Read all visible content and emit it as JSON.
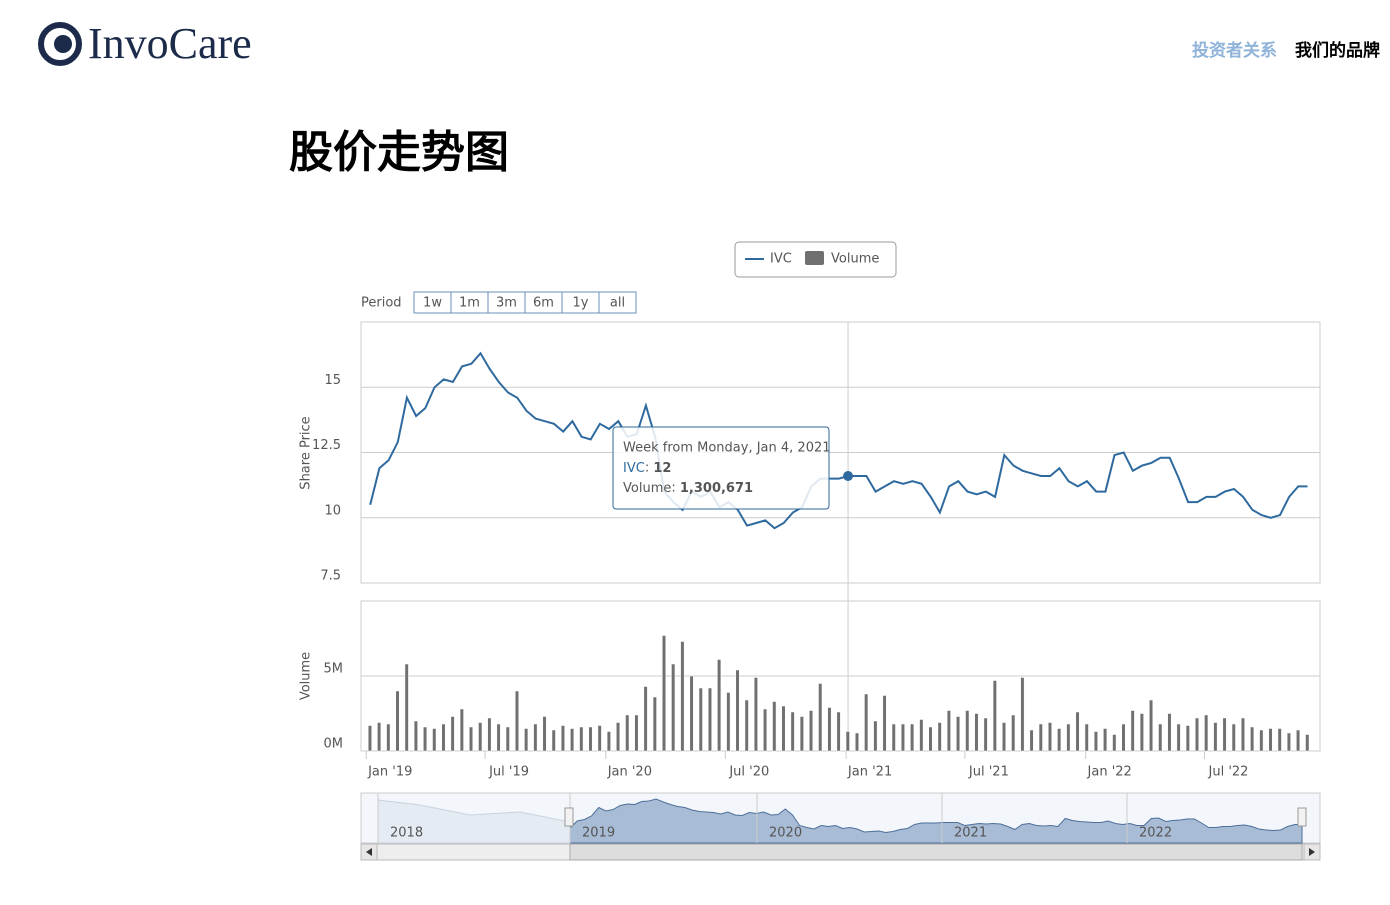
{
  "header": {
    "logo": "InvoCare",
    "nav": [
      "投资者关系",
      "我们的品牌"
    ]
  },
  "page_title": "股价走势图",
  "period": {
    "label": "Period",
    "buttons": [
      "1w",
      "1m",
      "3m",
      "6m",
      "1y",
      "all"
    ]
  },
  "chart_data": {
    "type": "line",
    "legend": [
      "IVC",
      "Volume"
    ],
    "y_title": "Share Price",
    "y2_title": "Volume",
    "x": [
      "2019-01-07",
      "2019-01-21",
      "2019-02-04",
      "2019-02-18",
      "2019-03-04",
      "2019-03-18",
      "2019-04-01",
      "2019-04-15",
      "2019-04-29",
      "2019-05-13",
      "2019-05-27",
      "2019-06-10",
      "2019-06-24",
      "2019-07-08",
      "2019-07-22",
      "2019-08-05",
      "2019-08-19",
      "2019-09-02",
      "2019-09-16",
      "2019-09-30",
      "2019-10-14",
      "2019-10-28",
      "2019-11-11",
      "2019-11-25",
      "2019-12-09",
      "2019-12-23",
      "2020-01-06",
      "2020-01-20",
      "2020-02-03",
      "2020-02-17",
      "2020-03-02",
      "2020-03-16",
      "2020-03-30",
      "2020-04-13",
      "2020-04-27",
      "2020-05-11",
      "2020-05-25",
      "2020-06-08",
      "2020-06-22",
      "2020-07-06",
      "2020-07-20",
      "2020-08-03",
      "2020-08-17",
      "2020-08-31",
      "2020-09-14",
      "2020-09-28",
      "2020-10-12",
      "2020-10-26",
      "2020-11-09",
      "2020-11-23",
      "2020-12-07",
      "2020-12-21",
      "2021-01-04",
      "2021-01-18",
      "2021-02-01",
      "2021-02-15",
      "2021-03-01",
      "2021-03-15",
      "2021-03-29",
      "2021-04-12",
      "2021-04-26",
      "2021-05-10",
      "2021-05-24",
      "2021-06-07",
      "2021-06-21",
      "2021-07-05",
      "2021-07-19",
      "2021-08-02",
      "2021-08-16",
      "2021-08-30",
      "2021-09-13",
      "2021-09-27",
      "2021-10-11",
      "2021-10-25",
      "2021-11-08",
      "2021-11-22",
      "2021-12-06",
      "2021-12-20",
      "2022-01-03",
      "2022-01-17",
      "2022-01-31",
      "2022-02-14",
      "2022-02-28",
      "2022-03-14",
      "2022-03-28",
      "2022-04-11",
      "2022-04-25",
      "2022-05-09",
      "2022-05-23",
      "2022-06-06",
      "2022-06-20",
      "2022-07-04",
      "2022-07-18",
      "2022-08-01",
      "2022-08-15",
      "2022-08-29",
      "2022-09-12",
      "2022-09-26",
      "2022-10-10",
      "2022-10-24",
      "2022-11-07",
      "2022-11-21",
      "2022-12-05"
    ],
    "series": [
      {
        "name": "IVC",
        "color": "#2f6a9f",
        "values": [
          10.5,
          11.9,
          12.2,
          12.9,
          14.6,
          13.9,
          14.2,
          15.0,
          15.3,
          15.2,
          15.8,
          15.9,
          16.3,
          15.7,
          15.2,
          14.8,
          14.6,
          14.1,
          13.8,
          13.7,
          13.6,
          13.3,
          13.7,
          13.1,
          13.0,
          13.6,
          13.4,
          13.7,
          13.1,
          13.2,
          14.3,
          13.1,
          11.0,
          10.6,
          10.3,
          11.0,
          10.8,
          11.0,
          10.4,
          10.6,
          10.3,
          9.7,
          9.8,
          9.9,
          9.6,
          9.8,
          10.2,
          10.4,
          11.2,
          11.5,
          11.5,
          11.5,
          11.6,
          11.6,
          11.6,
          11.0,
          11.2,
          11.4,
          11.3,
          11.4,
          11.3,
          10.8,
          10.2,
          11.2,
          11.4,
          11.0,
          10.9,
          11.0,
          10.8,
          12.4,
          12.0,
          11.8,
          11.7,
          11.6,
          11.6,
          11.9,
          11.4,
          11.2,
          11.4,
          11.0,
          11.0,
          12.4,
          12.5,
          11.8,
          12.0,
          12.1,
          12.3,
          12.3,
          11.5,
          10.6,
          10.6,
          10.8,
          10.8,
          11.0,
          11.1,
          10.8,
          10.3,
          10.1,
          10.0,
          10.1,
          10.8,
          11.2,
          11.2
        ]
      },
      {
        "name": "Volume",
        "color": "#707070",
        "axis": "y2",
        "values": [
          1700000,
          1900000,
          1800000,
          4000000,
          5800000,
          2000000,
          1600000,
          1500000,
          1800000,
          2300000,
          2800000,
          1600000,
          1900000,
          2200000,
          1800000,
          1600000,
          4000000,
          1500000,
          1800000,
          2300000,
          1400000,
          1700000,
          1500000,
          1600000,
          1600000,
          1700000,
          1300000,
          1900000,
          2400000,
          2400000,
          4300000,
          3600000,
          7700000,
          5800000,
          7300000,
          5000000,
          4200000,
          4200000,
          6100000,
          3900000,
          5400000,
          3400000,
          4900000,
          2800000,
          3300000,
          3000000,
          2600000,
          2300000,
          2700000,
          4500000,
          2900000,
          2600000,
          1300671,
          1200000,
          3800000,
          2000000,
          3700000,
          1800000,
          1800000,
          1800000,
          2100000,
          1600000,
          1900000,
          2700000,
          2300000,
          2700000,
          2500000,
          2200000,
          4700000,
          1900000,
          2400000,
          4900000,
          1400000,
          1800000,
          1900000,
          1500000,
          1800000,
          2600000,
          1800000,
          1300000,
          1500000,
          1100000,
          1800000,
          2700000,
          2500000,
          3400000,
          1800000,
          2500000,
          1800000,
          1700000,
          2200000,
          2400000,
          1900000,
          2200000,
          1800000,
          2200000,
          1600000,
          1400000,
          1500000,
          1500000,
          1200000,
          1400000,
          1100000
        ]
      }
    ],
    "xlim": [
      "2018-12-24",
      "2022-12-24"
    ],
    "xticks": [
      {
        "value": "2019-01-01",
        "label": "Jan '19"
      },
      {
        "value": "2019-07-01",
        "label": "Jul '19"
      },
      {
        "value": "2020-01-01",
        "label": "Jan '20"
      },
      {
        "value": "2020-07-01",
        "label": "Jul '20"
      },
      {
        "value": "2021-01-01",
        "label": "Jan '21"
      },
      {
        "value": "2021-07-01",
        "label": "Jul '21"
      },
      {
        "value": "2022-01-01",
        "label": "Jan '22"
      },
      {
        "value": "2022-07-01",
        "label": "Jul '22"
      }
    ],
    "ylim": [
      7.5,
      17.5
    ],
    "yticks": [
      7.5,
      {
        "value": 10,
        "label": "10"
      },
      12.5,
      15
    ],
    "y2lim": [
      0,
      10000000
    ],
    "y2ticks": [
      {
        "value": 0,
        "label": "0M"
      },
      {
        "value": 5000000,
        "label": "5M"
      }
    ],
    "grid": true,
    "navigator_labels": [
      "2018",
      "2019",
      "2020",
      "2021",
      "2022"
    ],
    "tooltip": {
      "title": "Week from Monday, Jan 4, 2021",
      "value": "12",
      "volume": "1,300,671"
    }
  }
}
